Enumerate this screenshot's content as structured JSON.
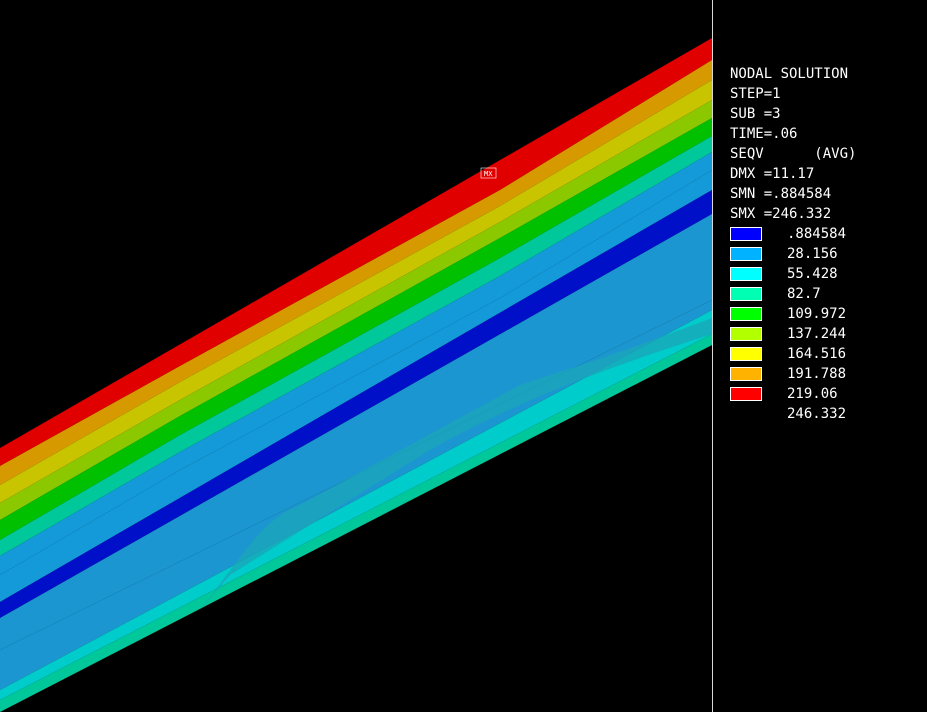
{
  "info": {
    "title": "NODAL SOLUTION",
    "step": "STEP=1",
    "sub": "SUB =3",
    "time": "TIME=.06",
    "quantity": "SEQV      (AVG)",
    "dmx": "DMX =11.17",
    "smn": "SMN =.884584",
    "smx": "SMX =246.332"
  },
  "max_marker": "MX",
  "legend": {
    "levels": [
      {
        "value": ".884584",
        "color": "#0000ff"
      },
      {
        "value": "28.156",
        "color": "#00b2ff"
      },
      {
        "value": "55.428",
        "color": "#00ffff"
      },
      {
        "value": "82.7",
        "color": "#00ffb2"
      },
      {
        "value": "109.972",
        "color": "#00ff00"
      },
      {
        "value": "137.244",
        "color": "#b2ff00"
      },
      {
        "value": "164.516",
        "color": "#ffff00"
      },
      {
        "value": "191.788",
        "color": "#ffb200"
      },
      {
        "value": "219.06",
        "color": "#ff0000"
      },
      {
        "value": "246.332",
        "color": null
      }
    ]
  },
  "plot_colors": {
    "background": "#000000",
    "red": "#e00000",
    "orange": "#d69a00",
    "yellow": "#c8c400",
    "yellow_green": "#8cc800",
    "green": "#00c000",
    "aqua_green": "#00c89a",
    "blue_light": "#149ad8",
    "blue_dark": "#0010c8",
    "blue_mid": "#1c96d0",
    "cyan": "#00cccc",
    "teal": "#1aa6b8"
  }
}
